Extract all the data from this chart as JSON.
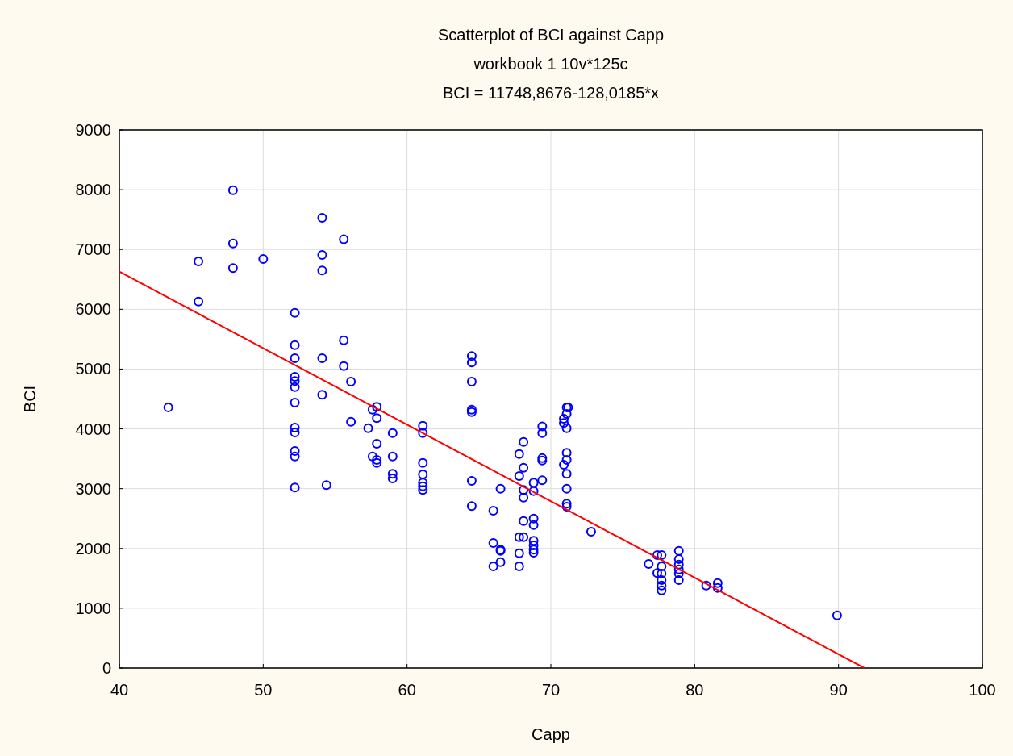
{
  "chart_data": {
    "type": "scatter",
    "title": "Scatterplot of BCI against Capp",
    "subtitle": "workbook 1 10v*125c",
    "annotations": [
      "BCI = 11748,8676-128,0185*x"
    ],
    "xlabel": "Capp",
    "ylabel": "BCI",
    "xlim": [
      40,
      100
    ],
    "ylim": [
      0,
      9000
    ],
    "xticks": [
      40,
      50,
      60,
      70,
      80,
      90,
      100
    ],
    "yticks": [
      0,
      1000,
      2000,
      3000,
      4000,
      5000,
      6000,
      7000,
      8000,
      9000
    ],
    "grid": true,
    "series": [
      {
        "color": "#0000ff",
        "marker": "circle",
        "x": [
          43.4,
          45.5,
          45.5,
          47.9,
          47.9,
          47.9,
          50.0,
          52.2,
          52.2,
          52.2,
          52.2,
          52.2,
          52.2,
          52.2,
          52.2,
          52.2,
          52.2,
          52.2,
          52.2,
          54.1,
          54.1,
          54.1,
          54.1,
          54.1,
          54.4,
          55.6,
          55.6,
          55.6,
          56.1,
          56.1,
          57.3,
          57.6,
          57.6,
          57.9,
          57.9,
          57.9,
          57.9,
          57.9,
          59.0,
          59.0,
          59.0,
          59.0,
          61.1,
          61.1,
          61.1,
          61.1,
          61.1,
          61.1,
          61.1,
          64.5,
          64.5,
          64.5,
          64.5,
          64.5,
          64.5,
          64.5,
          66.0,
          66.0,
          66.5,
          66.5,
          66.5,
          66.0,
          66.5,
          67.8,
          67.8,
          67.8,
          67.8,
          67.8,
          68.1,
          68.1,
          68.1,
          68.1,
          68.1,
          68.1,
          68.8,
          68.8,
          68.8,
          68.8,
          68.8,
          68.8,
          68.8,
          68.8,
          69.4,
          69.4,
          69.4,
          69.4,
          69.4,
          70.9,
          71.1,
          71.2,
          71.1,
          70.9,
          71.1,
          71.1,
          71.1,
          71.1,
          71.1,
          71.1,
          71.1,
          70.9,
          72.8,
          76.8,
          77.4,
          77.7,
          77.7,
          77.4,
          77.7,
          77.7,
          77.7,
          77.7,
          78.9,
          78.9,
          78.9,
          78.9,
          78.9,
          78.9,
          80.8,
          81.6,
          81.6,
          89.9
        ],
        "values": [
          4360,
          6800,
          6130,
          7990,
          7100,
          6690,
          6840,
          5940,
          5400,
          5180,
          4870,
          4800,
          4700,
          4440,
          4020,
          3940,
          3630,
          3540,
          3020,
          7530,
          6910,
          6650,
          5180,
          4570,
          3060,
          7170,
          5480,
          5050,
          4790,
          4120,
          4010,
          4320,
          3540,
          4370,
          4180,
          3750,
          3480,
          3430,
          3930,
          3540,
          3250,
          3170,
          4050,
          3930,
          3430,
          3240,
          3100,
          3040,
          2980,
          5220,
          5110,
          4790,
          4320,
          4280,
          3130,
          2710,
          2630,
          2090,
          3000,
          1980,
          1960,
          1700,
          1770,
          3580,
          3210,
          1920,
          2190,
          1700,
          3780,
          3350,
          2980,
          2850,
          2460,
          2190,
          3100,
          2960,
          2500,
          2390,
          2130,
          2050,
          1980,
          1930,
          4040,
          3930,
          3510,
          3470,
          3140,
          4170,
          4360,
          4360,
          4250,
          3400,
          4010,
          3600,
          3480,
          3250,
          3000,
          2750,
          2700,
          4100,
          2280,
          1740,
          1890,
          1890,
          1700,
          1590,
          1580,
          1470,
          1380,
          1300,
          1960,
          1820,
          1650,
          1580,
          1470,
          1730,
          1380,
          1420,
          1340,
          880
        ]
      },
      {
        "type": "line",
        "color": "#ff0000",
        "marker": "none",
        "x": [
          40,
          91.8
        ],
        "values": [
          6630,
          0
        ]
      }
    ]
  }
}
